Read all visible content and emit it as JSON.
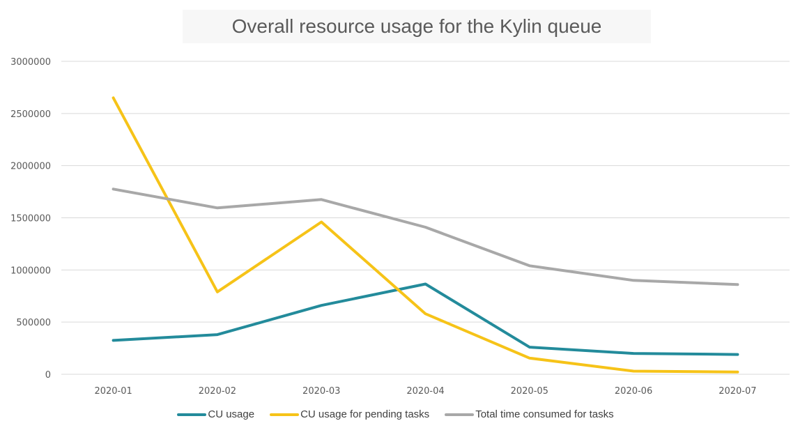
{
  "chart_data": {
    "type": "line",
    "title": "Overall resource usage for the Kylin queue",
    "xlabel": "",
    "ylabel": "",
    "categories": [
      "2020-01",
      "2020-02",
      "2020-03",
      "2020-04",
      "2020-05",
      "2020-06",
      "2020-07"
    ],
    "yticks": [
      "0",
      "500000",
      "1000000",
      "1500000",
      "2000000",
      "2500000",
      "3000000"
    ],
    "ylim": [
      0,
      3000000
    ],
    "grid": true,
    "legend_position": "bottom",
    "series": [
      {
        "name": "CU usage",
        "color": "#238b9b",
        "values": [
          325000,
          380000,
          660000,
          865000,
          260000,
          200000,
          190000
        ]
      },
      {
        "name": "CU usage for pending tasks",
        "color": "#f6c318",
        "values": [
          2650000,
          790000,
          1460000,
          580000,
          155000,
          30000,
          22000
        ]
      },
      {
        "name": "Total time consumed for tasks",
        "color": "#a8a8a8",
        "values": [
          1775000,
          1595000,
          1675000,
          1410000,
          1040000,
          900000,
          860000
        ]
      }
    ]
  }
}
